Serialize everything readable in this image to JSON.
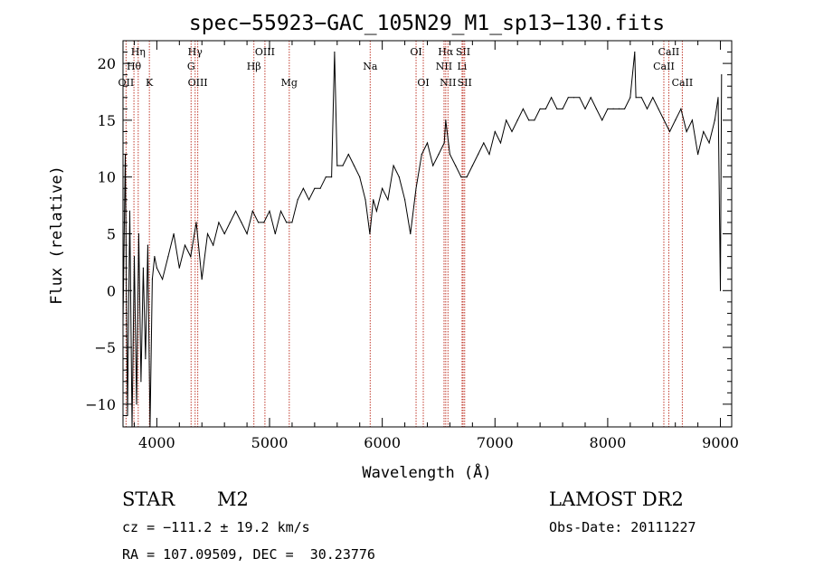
{
  "chart_data": {
    "type": "line",
    "title": "spec−55923−GAC_105N29_M1_sp13−130.fits",
    "xlabel": "Wavelength (Å)",
    "ylabel": "Flux (relative)",
    "xlim": [
      3700,
      9100
    ],
    "ylim": [
      -12,
      22
    ],
    "xticks": [
      4000,
      5000,
      6000,
      7000,
      8000,
      9000
    ],
    "yticks": [
      -10,
      -5,
      0,
      5,
      10,
      15,
      20
    ],
    "xtick_labels": [
      "4000",
      "5000",
      "6000",
      "7000",
      "8000",
      "9000"
    ],
    "ytick_labels": [
      "−10",
      "−5",
      "0",
      "5",
      "10",
      "15",
      "20"
    ],
    "grid": false,
    "series": [
      {
        "color": "#000000",
        "x": [
          3700,
          3720,
          3740,
          3760,
          3780,
          3800,
          3820,
          3840,
          3860,
          3880,
          3900,
          3920,
          3940,
          3960,
          3980,
          4000,
          4050,
          4100,
          4150,
          4200,
          4250,
          4300,
          4350,
          4400,
          4450,
          4500,
          4550,
          4600,
          4650,
          4700,
          4750,
          4800,
          4850,
          4900,
          4950,
          5000,
          5050,
          5100,
          5150,
          5200,
          5250,
          5300,
          5350,
          5400,
          5450,
          5500,
          5550,
          5577,
          5600,
          5650,
          5700,
          5750,
          5800,
          5850,
          5890,
          5920,
          5950,
          6000,
          6050,
          6100,
          6150,
          6200,
          6250,
          6300,
          6350,
          6400,
          6450,
          6500,
          6550,
          6563,
          6600,
          6650,
          6700,
          6750,
          6800,
          6850,
          6900,
          6950,
          7000,
          7050,
          7100,
          7150,
          7200,
          7250,
          7300,
          7350,
          7400,
          7450,
          7500,
          7550,
          7600,
          7650,
          7700,
          7750,
          7800,
          7850,
          7900,
          7950,
          8000,
          8050,
          8100,
          8150,
          8200,
          8240,
          8250,
          8300,
          8350,
          8400,
          8450,
          8500,
          8550,
          8600,
          8650,
          8700,
          8750,
          8800,
          8850,
          8900,
          8950,
          8980,
          9000,
          9010
        ],
        "y": [
          -3,
          12,
          -11,
          7,
          -12,
          3,
          -10,
          5,
          -8,
          2,
          -6,
          4,
          -12,
          1,
          3,
          2,
          1,
          3,
          5,
          2,
          4,
          3,
          6,
          1,
          5,
          4,
          6,
          5,
          6,
          7,
          6,
          5,
          7,
          6,
          6,
          7,
          5,
          7,
          6,
          6,
          8,
          9,
          8,
          9,
          9,
          10,
          10,
          21,
          11,
          11,
          12,
          11,
          10,
          8,
          5,
          8,
          7,
          9,
          8,
          11,
          10,
          8,
          5,
          9,
          12,
          13,
          11,
          12,
          13,
          15,
          12,
          11,
          10,
          10,
          11,
          12,
          13,
          12,
          14,
          13,
          15,
          14,
          15,
          16,
          15,
          15,
          16,
          16,
          17,
          16,
          16,
          17,
          17,
          17,
          16,
          17,
          16,
          15,
          16,
          16,
          16,
          16,
          17,
          21,
          17,
          17,
          16,
          17,
          16,
          15,
          14,
          15,
          16,
          14,
          15,
          12,
          14,
          13,
          15,
          17,
          0,
          19
        ]
      }
    ],
    "line_marks": [
      {
        "label": "Hη",
        "x": 3835,
        "row": 1
      },
      {
        "label": "Hθ",
        "x": 3797,
        "row": 2
      },
      {
        "label": "OII",
        "x": 3727,
        "row": 3
      },
      {
        "label": "K",
        "x": 3934,
        "row": 3
      },
      {
        "label": "Hγ",
        "x": 4340,
        "row": 1
      },
      {
        "label": "G",
        "x": 4304,
        "row": 2
      },
      {
        "label": "OIII",
        "x": 4363,
        "row": 3
      },
      {
        "label": "OIII",
        "x": 4959,
        "row": 1
      },
      {
        "label": "Hβ",
        "x": 4861,
        "row": 2
      },
      {
        "label": "Mg",
        "x": 5175,
        "row": 3
      },
      {
        "label": "Na",
        "x": 5893,
        "row": 2
      },
      {
        "label": "OI",
        "x": 6300,
        "row": 1
      },
      {
        "label": "OI",
        "x": 6364,
        "row": 3
      },
      {
        "label": "Hα",
        "x": 6563,
        "row": 1
      },
      {
        "label": "SII",
        "x": 6717,
        "row": 1
      },
      {
        "label": "NII",
        "x": 6548,
        "row": 2
      },
      {
        "label": "Li",
        "x": 6708,
        "row": 2
      },
      {
        "label": "NII",
        "x": 6583,
        "row": 3
      },
      {
        "label": "SII",
        "x": 6731,
        "row": 3
      },
      {
        "label": "CaII",
        "x": 8542,
        "row": 1
      },
      {
        "label": "CaII",
        "x": 8498,
        "row": 2
      },
      {
        "label": "CaII",
        "x": 8662,
        "row": 3
      }
    ]
  },
  "info": {
    "object_class": "STAR",
    "subclass": "M2",
    "survey": "LAMOST DR2",
    "cz": "cz = −111.2 ± 19.2 km/s",
    "obs_date": "Obs-Date: 20111227",
    "coords": "RA = 107.09509, DEC =  30.23776"
  }
}
